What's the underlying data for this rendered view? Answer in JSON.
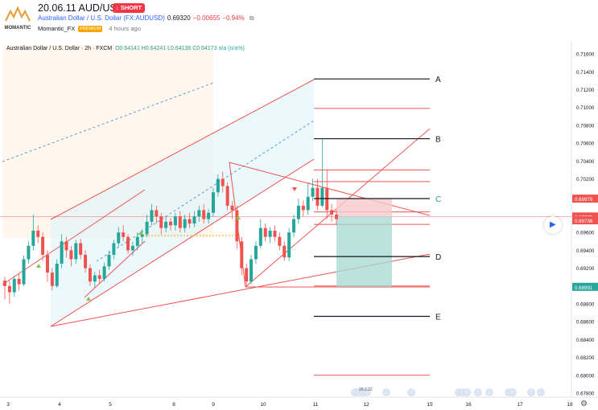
{
  "header": {
    "title": "20.06.11 AUD/USD",
    "badge": "SHORT",
    "logo_text": "MOMANTIC",
    "symbol": "Australian Dollar / U.S. Dollar (FX:AUDUSD)",
    "price": "0.69320",
    "change": "−0.00655",
    "change_pct": "−0.94%",
    "author": "Momantic_FX",
    "author_badge": "PREMIUM",
    "time_ago": "4 hours ago"
  },
  "legend": {
    "title": "Australian Dollar / U.S. Dollar · 2h · FXCM",
    "ohlc": "O0.64141 H0.64241 L0.64136 C0.64173 n/a (n/a%)"
  },
  "colors": {
    "up": "#26a69a",
    "down": "#ef5350",
    "level_line": "#131722",
    "red_line": "#ef5350",
    "label_c": "#26a69a",
    "stop_zone": "#f7c9cc",
    "target_zone": "#a6d8d3"
  },
  "chart_data": {
    "type": "candlestick",
    "xlabel": "",
    "ylabel": "",
    "ylim": [
      0.678,
      0.717
    ],
    "y_ticks": [
      "0.71600",
      "0.71400",
      "0.71200",
      "0.71000",
      "0.70800",
      "0.70600",
      "0.70400",
      "0.70200",
      "0.70000",
      "0.69800",
      "0.69600",
      "0.69400",
      "0.69200",
      "0.69000",
      "0.68800",
      "0.68600",
      "0.68400",
      "0.68200",
      "0.68000",
      "0.67800"
    ],
    "x_ticks": [
      "3",
      "4",
      "5",
      "8",
      "9",
      "10",
      "11",
      "12",
      "15",
      "16",
      "17",
      "18"
    ],
    "price_labels": [
      {
        "text": "0.69979",
        "value": 0.69979,
        "color": "#ef5350"
      },
      {
        "text": "0.69779",
        "value": 0.69779,
        "color": "#ef5350"
      },
      {
        "text": "0.69736",
        "value": 0.69736,
        "color": "#ef5350"
      },
      {
        "text": "0.68991",
        "value": 0.68991,
        "color": "#26a69a"
      }
    ],
    "levels": [
      {
        "label": "A",
        "value": 0.7132
      },
      {
        "label": "B",
        "value": 0.7065
      },
      {
        "label": "C",
        "value": 0.6998
      },
      {
        "label": "D",
        "value": 0.6933
      },
      {
        "label": "E",
        "value": 0.6866
      }
    ],
    "red_levels": [
      0.7099,
      0.703,
      0.7017,
      0.6983,
      0.6969,
      0.69,
      0.68
    ],
    "trade": {
      "entry": 0.69779,
      "stop": 0.69979,
      "target": 0.68991
    },
    "candles": [
      [
        0.6906,
        0.69,
        0.691,
        0.6885
      ],
      [
        0.69,
        0.6893,
        0.6906,
        0.688
      ],
      [
        0.6893,
        0.6908,
        0.6912,
        0.6888
      ],
      [
        0.6908,
        0.6902,
        0.6914,
        0.6895
      ],
      [
        0.6902,
        0.693,
        0.6934,
        0.69
      ],
      [
        0.693,
        0.6945,
        0.695,
        0.6925
      ],
      [
        0.6945,
        0.6962,
        0.698,
        0.694
      ],
      [
        0.6962,
        0.6955,
        0.6968,
        0.6948
      ],
      [
        0.6955,
        0.6935,
        0.696,
        0.6928
      ],
      [
        0.6935,
        0.6915,
        0.694,
        0.6905
      ],
      [
        0.6915,
        0.69,
        0.692,
        0.6895
      ],
      [
        0.69,
        0.6925,
        0.693,
        0.6898
      ],
      [
        0.6925,
        0.695,
        0.6958,
        0.692
      ],
      [
        0.695,
        0.694,
        0.6955,
        0.6932
      ],
      [
        0.694,
        0.693,
        0.6945,
        0.6922
      ],
      [
        0.693,
        0.6948,
        0.6952,
        0.6925
      ],
      [
        0.6948,
        0.6935,
        0.6953,
        0.693
      ],
      [
        0.6935,
        0.692,
        0.694,
        0.6915
      ],
      [
        0.692,
        0.6905,
        0.6924,
        0.69
      ],
      [
        0.6905,
        0.6912,
        0.6916,
        0.6898
      ],
      [
        0.6912,
        0.6908,
        0.6918,
        0.6903
      ],
      [
        0.6908,
        0.6922,
        0.6926,
        0.6905
      ],
      [
        0.6922,
        0.6935,
        0.694,
        0.6918
      ],
      [
        0.6935,
        0.6948,
        0.6952,
        0.693
      ],
      [
        0.6948,
        0.696,
        0.6966,
        0.6944
      ],
      [
        0.696,
        0.6955,
        0.6968,
        0.695
      ],
      [
        0.6955,
        0.694,
        0.6958,
        0.6936
      ],
      [
        0.694,
        0.6945,
        0.695,
        0.6934
      ],
      [
        0.6945,
        0.6955,
        0.696,
        0.694
      ],
      [
        0.6955,
        0.6958,
        0.6964,
        0.6948
      ],
      [
        0.6958,
        0.6972,
        0.698,
        0.6955
      ],
      [
        0.6972,
        0.6985,
        0.6992,
        0.6968
      ],
      [
        0.6985,
        0.6978,
        0.699,
        0.697
      ],
      [
        0.6978,
        0.6965,
        0.6982,
        0.6958
      ],
      [
        0.6965,
        0.6972,
        0.6978,
        0.696
      ],
      [
        0.6972,
        0.6968,
        0.6976,
        0.6962
      ],
      [
        0.6968,
        0.6978,
        0.6982,
        0.6962
      ],
      [
        0.6978,
        0.6965,
        0.6984,
        0.696
      ],
      [
        0.6965,
        0.6975,
        0.698,
        0.696
      ],
      [
        0.6975,
        0.697,
        0.6982,
        0.6965
      ],
      [
        0.697,
        0.6978,
        0.6984,
        0.6966
      ],
      [
        0.6978,
        0.6985,
        0.699,
        0.6972
      ],
      [
        0.6985,
        0.6975,
        0.6992,
        0.697
      ],
      [
        0.6975,
        0.6982,
        0.6986,
        0.697
      ],
      [
        0.6982,
        0.7005,
        0.701,
        0.6978
      ],
      [
        0.7005,
        0.702,
        0.7025,
        0.7
      ],
      [
        0.702,
        0.7012,
        0.7028,
        0.7005
      ],
      [
        0.7012,
        0.699,
        0.7016,
        0.6985
      ],
      [
        0.699,
        0.6985,
        0.6995,
        0.6975
      ],
      [
        0.6985,
        0.695,
        0.699,
        0.6942
      ],
      [
        0.695,
        0.692,
        0.6955,
        0.6912
      ],
      [
        0.692,
        0.6905,
        0.6925,
        0.69
      ],
      [
        0.6905,
        0.693,
        0.6935,
        0.6902
      ],
      [
        0.693,
        0.6945,
        0.695,
        0.6925
      ],
      [
        0.6945,
        0.6965,
        0.6975,
        0.6942
      ],
      [
        0.6965,
        0.6955,
        0.697,
        0.695
      ],
      [
        0.6955,
        0.6962,
        0.6966,
        0.6948
      ],
      [
        0.6962,
        0.6955,
        0.6968,
        0.695
      ],
      [
        0.6955,
        0.6945,
        0.696,
        0.694
      ],
      [
        0.6945,
        0.6932,
        0.695,
        0.6928
      ],
      [
        0.6932,
        0.696,
        0.6965,
        0.6928
      ],
      [
        0.696,
        0.6975,
        0.698,
        0.6955
      ],
      [
        0.6975,
        0.699,
        0.6998,
        0.697
      ],
      [
        0.699,
        0.6985,
        0.6996,
        0.6978
      ],
      [
        0.6985,
        0.7,
        0.7015,
        0.698
      ],
      [
        0.7,
        0.701,
        0.702,
        0.6995
      ],
      [
        0.701,
        0.699,
        0.702,
        0.6985
      ],
      [
        0.699,
        0.701,
        0.7065,
        0.6988
      ],
      [
        0.701,
        0.6985,
        0.703,
        0.6975
      ],
      [
        0.6985,
        0.698,
        0.6992,
        0.6972
      ],
      [
        0.698,
        0.6975,
        0.6985,
        0.6968
      ]
    ]
  },
  "bottom_events": [
    "20.2.22"
  ]
}
